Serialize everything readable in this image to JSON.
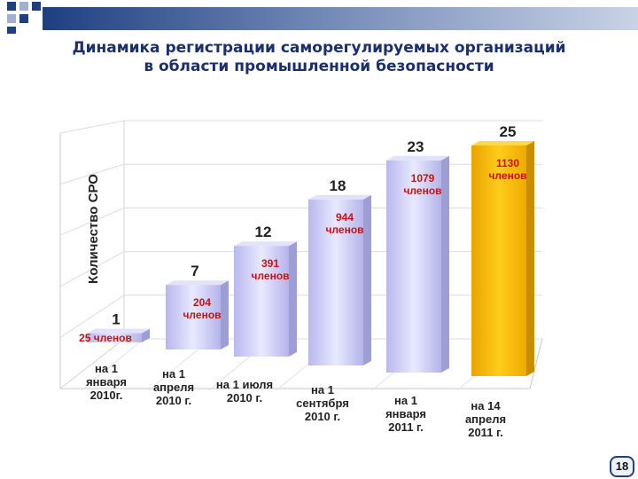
{
  "slide": {
    "title_line1": "Динамика регистрации саморегулируемых организаций",
    "title_line2": "в области промышленной безопасности",
    "page_number": "18"
  },
  "colors": {
    "brand": "#1e3f80",
    "bar": "#c8c8f5",
    "highlight_bar": "#f5b800",
    "label_red": "#cc1111"
  },
  "chart_data": {
    "type": "bar",
    "title": "",
    "xlabel": "",
    "ylabel": "Количество СРО",
    "ylim": [
      0,
      27
    ],
    "grid": true,
    "categories": [
      [
        "на 1",
        "января",
        "2010г."
      ],
      [
        "на 1",
        "апреля",
        "2010 г."
      ],
      [
        "на 1 июля",
        "2010 г."
      ],
      [
        "на 1",
        "сентября",
        "2010 г."
      ],
      [
        "на 1",
        "января",
        "2011 г."
      ],
      [
        "на 14",
        "апреля",
        "2011 г."
      ]
    ],
    "values": [
      1,
      7,
      12,
      18,
      23,
      25
    ],
    "member_labels": [
      [
        "25 членов"
      ],
      [
        "204",
        "членов"
      ],
      [
        "391",
        "членов"
      ],
      [
        "944",
        "членов"
      ],
      [
        "1079",
        "членов"
      ],
      [
        "1130",
        "членов"
      ]
    ],
    "highlight_index": 5
  }
}
